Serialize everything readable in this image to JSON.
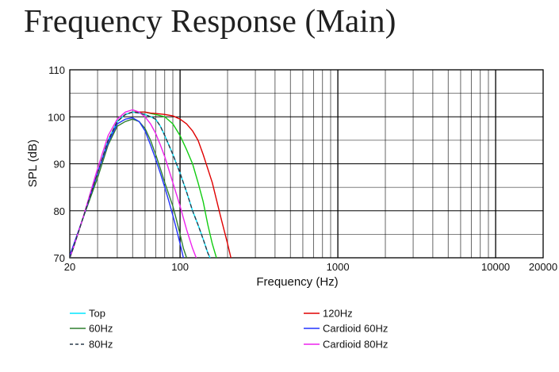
{
  "title": "Frequency Response (Main)",
  "colors": {
    "top": "#00e5ff",
    "hz60": "#2f7f2f",
    "hz80": "#2a3a4a",
    "hz120": "#e00000",
    "cardioid60": "#2233ff",
    "cardioid80": "#ee22ee",
    "green": "#11cc11",
    "grid": "#000000",
    "text": "#111111"
  },
  "chart_data": {
    "type": "line",
    "title": "",
    "xlabel": "Frequency (Hz)",
    "ylabel": "SPL (dB)",
    "x_scale": "log",
    "xlim": [
      20,
      20000
    ],
    "ylim": [
      70,
      110
    ],
    "grid": true,
    "legend_position": "bottom",
    "x_ticks": [
      20,
      100,
      1000,
      10000,
      20000
    ],
    "x_tick_labels": [
      "20",
      "100",
      "1000",
      "10000",
      "20000"
    ],
    "y_ticks": [
      70,
      80,
      90,
      100,
      110
    ],
    "y_tick_labels": [
      "70",
      "80",
      "90",
      "100",
      "110"
    ],
    "legend": [
      {
        "label": "Top",
        "series": "top",
        "color": "#00e5ff",
        "dashed": false
      },
      {
        "label": "60Hz",
        "series": "hz60",
        "color": "#2f7f2f",
        "dashed": false
      },
      {
        "label": "80Hz",
        "series": "hz80",
        "color": "#2a3a4a",
        "dashed": true
      },
      {
        "label": "120Hz",
        "series": "hz120",
        "color": "#e00000",
        "dashed": false
      },
      {
        "label": "Cardioid 60Hz",
        "series": "cardioid60",
        "color": "#2233ff",
        "dashed": false
      },
      {
        "label": "Cardioid 80Hz",
        "series": "cardioid80",
        "color": "#ee22ee",
        "dashed": false
      }
    ],
    "series": [
      {
        "name": "Top",
        "key": "top",
        "color": "#00e5ff",
        "dashed": false,
        "points": [
          [
            20,
            70
          ],
          [
            21,
            72
          ],
          [
            24,
            78
          ],
          [
            30,
            88
          ],
          [
            35,
            95
          ],
          [
            40,
            99
          ],
          [
            45,
            100.5
          ],
          [
            50,
            101
          ],
          [
            55,
            100.8
          ],
          [
            60,
            100.5
          ],
          [
            65,
            100
          ],
          [
            70,
            99.5
          ],
          [
            75,
            98
          ],
          [
            80,
            96
          ],
          [
            90,
            92
          ],
          [
            100,
            88
          ],
          [
            110,
            84
          ],
          [
            120,
            80
          ],
          [
            130,
            77
          ],
          [
            140,
            74
          ],
          [
            150,
            71
          ],
          [
            160,
            69
          ]
        ]
      },
      {
        "name": "60Hz",
        "key": "hz60",
        "color": "#2f7f2f",
        "dashed": false,
        "points": [
          [
            20,
            70
          ],
          [
            21,
            72
          ],
          [
            24,
            78
          ],
          [
            30,
            87
          ],
          [
            35,
            94
          ],
          [
            40,
            98
          ],
          [
            45,
            99
          ],
          [
            50,
            99.5
          ],
          [
            55,
            99
          ],
          [
            60,
            97.5
          ],
          [
            65,
            95
          ],
          [
            70,
            92
          ],
          [
            75,
            89
          ],
          [
            80,
            86
          ],
          [
            90,
            81
          ],
          [
            95,
            78
          ],
          [
            100,
            75
          ],
          [
            105,
            72
          ],
          [
            110,
            70
          ]
        ]
      },
      {
        "name": "80Hz",
        "key": "hz80",
        "color": "#2a3a4a",
        "dashed": true,
        "points": [
          [
            20,
            70
          ],
          [
            21,
            72
          ],
          [
            24,
            78
          ],
          [
            30,
            88
          ],
          [
            35,
            95
          ],
          [
            40,
            99
          ],
          [
            45,
            100.5
          ],
          [
            50,
            101
          ],
          [
            55,
            100.8
          ],
          [
            60,
            100.5
          ],
          [
            65,
            100
          ],
          [
            70,
            99.5
          ],
          [
            75,
            98
          ],
          [
            80,
            96
          ],
          [
            90,
            92
          ],
          [
            100,
            88
          ],
          [
            110,
            84
          ],
          [
            120,
            80
          ],
          [
            130,
            77
          ],
          [
            140,
            74
          ],
          [
            150,
            71
          ],
          [
            160,
            69
          ]
        ]
      },
      {
        "name": "120Hz",
        "key": "hz120",
        "color": "#e00000",
        "dashed": false,
        "points": [
          [
            20,
            70
          ],
          [
            21,
            72
          ],
          [
            24,
            78
          ],
          [
            30,
            88
          ],
          [
            35,
            95
          ],
          [
            40,
            99
          ],
          [
            45,
            100.5
          ],
          [
            50,
            101
          ],
          [
            55,
            101
          ],
          [
            60,
            101
          ],
          [
            65,
            100.8
          ],
          [
            70,
            100.7
          ],
          [
            80,
            100.5
          ],
          [
            90,
            100.2
          ],
          [
            100,
            99.5
          ],
          [
            110,
            98.5
          ],
          [
            120,
            97
          ],
          [
            130,
            95
          ],
          [
            140,
            92
          ],
          [
            160,
            86
          ],
          [
            180,
            79
          ],
          [
            200,
            73
          ],
          [
            210,
            70
          ]
        ]
      },
      {
        "name": "Cardioid 60Hz",
        "key": "cardioid60",
        "color": "#2233ff",
        "dashed": false,
        "points": [
          [
            20,
            70.5
          ],
          [
            21,
            72.5
          ],
          [
            24,
            78
          ],
          [
            30,
            88
          ],
          [
            35,
            94.5
          ],
          [
            40,
            98.5
          ],
          [
            45,
            99.5
          ],
          [
            50,
            99.8
          ],
          [
            55,
            99
          ],
          [
            60,
            97
          ],
          [
            65,
            94
          ],
          [
            70,
            91
          ],
          [
            75,
            88
          ],
          [
            80,
            85
          ],
          [
            85,
            82
          ],
          [
            90,
            79
          ],
          [
            95,
            76
          ],
          [
            100,
            73
          ],
          [
            105,
            70
          ]
        ]
      },
      {
        "name": "Cardioid 80Hz",
        "key": "cardioid80",
        "color": "#ee22ee",
        "dashed": false,
        "points": [
          [
            20,
            70
          ],
          [
            21,
            72
          ],
          [
            24,
            78
          ],
          [
            30,
            89
          ],
          [
            35,
            96
          ],
          [
            40,
            99.5
          ],
          [
            45,
            101
          ],
          [
            50,
            101.5
          ],
          [
            55,
            101
          ],
          [
            60,
            100
          ],
          [
            65,
            98.5
          ],
          [
            70,
            96.5
          ],
          [
            75,
            94
          ],
          [
            80,
            91.5
          ],
          [
            90,
            86
          ],
          [
            100,
            81
          ],
          [
            110,
            76
          ],
          [
            120,
            72
          ],
          [
            130,
            69
          ]
        ]
      },
      {
        "name": "",
        "key": "green",
        "color": "#11cc11",
        "dashed": false,
        "points": [
          [
            20,
            70
          ],
          [
            21,
            72
          ],
          [
            24,
            78
          ],
          [
            30,
            88
          ],
          [
            35,
            95
          ],
          [
            40,
            99
          ],
          [
            45,
            100.5
          ],
          [
            50,
            101
          ],
          [
            55,
            101
          ],
          [
            60,
            101
          ],
          [
            65,
            100.7
          ],
          [
            70,
            100.5
          ],
          [
            80,
            100
          ],
          [
            90,
            98.5
          ],
          [
            100,
            96
          ],
          [
            110,
            93
          ],
          [
            120,
            90
          ],
          [
            130,
            86
          ],
          [
            140,
            82
          ],
          [
            150,
            77
          ],
          [
            160,
            73
          ],
          [
            170,
            70
          ]
        ]
      }
    ]
  }
}
